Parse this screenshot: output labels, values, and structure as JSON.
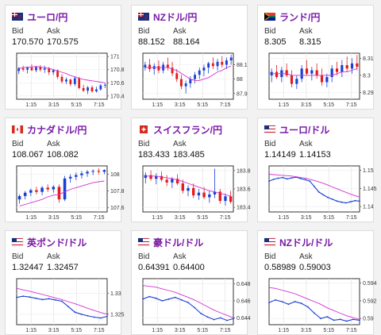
{
  "labels": {
    "bid": "Bid",
    "ask": "Ask"
  },
  "colors": {
    "title": "#7a1aa8",
    "up": "#1a3fd6",
    "down": "#e41b1b",
    "ma": "#d232d2",
    "line": "#1a3fd6"
  },
  "cards": [
    {
      "title": "ユーロ/円",
      "flag": "eu-flag",
      "bid": "170.570",
      "ask": "170.575",
      "chart_data": {
        "type": "candlestick",
        "x_ticks": [
          "1:15",
          "3:15",
          "5:15",
          "7:15"
        ],
        "y_ticks": [
          "171",
          "170.8",
          "170.6",
          "170.4"
        ],
        "ylim": [
          170.35,
          171.05
        ],
        "ohlc": [
          [
            170.78,
            170.84,
            170.73,
            170.82
          ],
          [
            170.82,
            170.86,
            170.77,
            170.8
          ],
          [
            170.8,
            170.84,
            170.74,
            170.83
          ],
          [
            170.83,
            170.88,
            170.78,
            170.79
          ],
          [
            170.79,
            170.85,
            170.76,
            170.84
          ],
          [
            170.84,
            170.87,
            170.77,
            170.8
          ],
          [
            170.8,
            170.86,
            170.75,
            170.82
          ],
          [
            170.82,
            170.84,
            170.72,
            170.76
          ],
          [
            170.76,
            170.81,
            170.72,
            170.79
          ],
          [
            170.79,
            170.8,
            170.66,
            170.69
          ],
          [
            170.69,
            170.73,
            170.59,
            170.62
          ],
          [
            170.62,
            170.68,
            170.58,
            170.65
          ],
          [
            170.65,
            170.66,
            170.55,
            170.58
          ],
          [
            170.58,
            170.7,
            170.55,
            170.67
          ],
          [
            170.67,
            170.69,
            170.5,
            170.52
          ],
          [
            170.52,
            170.57,
            170.46,
            170.48
          ],
          [
            170.48,
            170.55,
            170.43,
            170.53
          ],
          [
            170.53,
            170.56,
            170.45,
            170.47
          ],
          [
            170.47,
            170.54,
            170.45,
            170.5
          ],
          [
            170.5,
            170.58,
            170.48,
            170.56
          ],
          [
            170.56,
            170.6,
            170.52,
            170.57
          ]
        ],
        "ma": [
          170.82,
          170.83,
          170.84,
          170.84,
          170.85,
          170.84,
          170.83,
          170.82,
          170.8,
          170.78,
          170.76,
          170.74,
          170.71,
          170.69,
          170.67,
          170.65,
          170.64,
          170.63,
          170.62,
          170.61,
          170.6
        ]
      }
    },
    {
      "title": "NZドル/円",
      "flag": "nz-flag",
      "bid": "88.152",
      "ask": "88.164",
      "chart_data": {
        "type": "candlestick",
        "x_ticks": [
          "1:15",
          "3:15",
          "5:15",
          "7:15"
        ],
        "y_ticks": [
          "88.1",
          "88",
          "87.9"
        ],
        "ylim": [
          87.86,
          88.18
        ],
        "ohlc": [
          [
            88.08,
            88.12,
            88.06,
            88.1
          ],
          [
            88.1,
            88.14,
            88.05,
            88.07
          ],
          [
            88.07,
            88.11,
            88.03,
            88.09
          ],
          [
            88.09,
            88.13,
            88.04,
            88.06
          ],
          [
            88.06,
            88.12,
            88.04,
            88.1
          ],
          [
            88.1,
            88.15,
            88.06,
            88.08
          ],
          [
            88.08,
            88.12,
            88.02,
            88.04
          ],
          [
            88.04,
            88.07,
            87.98,
            88.0
          ],
          [
            88.0,
            88.03,
            87.93,
            87.95
          ],
          [
            87.95,
            87.99,
            87.9,
            87.97
          ],
          [
            87.97,
            88.02,
            87.94,
            88.0
          ],
          [
            88.0,
            88.05,
            87.97,
            88.03
          ],
          [
            88.03,
            88.08,
            88.0,
            88.06
          ],
          [
            88.06,
            88.1,
            88.02,
            88.08
          ],
          [
            88.08,
            88.12,
            88.04,
            88.11
          ],
          [
            88.11,
            88.15,
            88.07,
            88.09
          ],
          [
            88.09,
            88.14,
            88.06,
            88.12
          ],
          [
            88.12,
            88.16,
            88.08,
            88.1
          ],
          [
            88.1,
            88.15,
            88.07,
            88.13
          ],
          [
            88.13,
            88.17,
            88.1,
            88.15
          ]
        ],
        "ma": [
          88.08,
          88.08,
          88.08,
          88.08,
          88.08,
          88.08,
          88.07,
          88.06,
          88.04,
          88.02,
          88.0,
          87.99,
          87.99,
          88.0,
          88.01,
          88.03,
          88.05,
          88.06,
          88.08,
          88.09
        ]
      }
    },
    {
      "title": "ランド/円",
      "flag": "za-flag",
      "bid": "8.305",
      "ask": "8.315",
      "chart_data": {
        "type": "candlestick",
        "x_ticks": [
          "1:15",
          "3:15",
          "5:15",
          "7:15"
        ],
        "y_ticks": [
          "8.31",
          "8.3",
          "8.29"
        ],
        "ylim": [
          8.286,
          8.313
        ],
        "ohlc": [
          [
            8.3,
            8.304,
            8.296,
            8.302
          ],
          [
            8.302,
            8.306,
            8.298,
            8.299
          ],
          [
            8.299,
            8.305,
            8.296,
            8.303
          ],
          [
            8.303,
            8.307,
            8.299,
            8.3
          ],
          [
            8.3,
            8.303,
            8.293,
            8.295
          ],
          [
            8.295,
            8.3,
            8.292,
            8.298
          ],
          [
            8.298,
            8.306,
            8.296,
            8.304
          ],
          [
            8.304,
            8.309,
            8.3,
            8.301
          ],
          [
            8.301,
            8.305,
            8.297,
            8.303
          ],
          [
            8.303,
            8.307,
            8.298,
            8.3
          ],
          [
            8.3,
            8.304,
            8.294,
            8.296
          ],
          [
            8.296,
            8.301,
            8.293,
            8.299
          ],
          [
            8.299,
            8.306,
            8.296,
            8.304
          ],
          [
            8.304,
            8.308,
            8.3,
            8.302
          ],
          [
            8.302,
            8.309,
            8.299,
            8.306
          ],
          [
            8.306,
            8.311,
            8.302,
            8.304
          ],
          [
            8.304,
            8.31,
            8.301,
            8.307
          ],
          [
            8.307,
            8.312,
            8.303,
            8.305
          ]
        ],
        "ma": [
          8.301,
          8.301,
          8.301,
          8.301,
          8.3,
          8.3,
          8.3,
          8.3,
          8.3,
          8.3,
          8.3,
          8.3,
          8.3,
          8.301,
          8.302,
          8.302,
          8.303,
          8.304
        ]
      }
    },
    {
      "title": "カナダドル/円",
      "flag": "ca-flag",
      "bid": "108.067",
      "ask": "108.082",
      "chart_data": {
        "type": "candlestick",
        "x_ticks": [
          "1:15",
          "3:15",
          "5:15",
          "7:15"
        ],
        "y_ticks": [
          "108",
          "107.8",
          "107.6"
        ],
        "ylim": [
          107.55,
          108.1
        ],
        "ohlc": [
          [
            107.7,
            107.76,
            107.65,
            107.74
          ],
          [
            107.74,
            107.8,
            107.7,
            107.78
          ],
          [
            107.78,
            107.83,
            107.74,
            107.81
          ],
          [
            107.81,
            107.85,
            107.76,
            107.79
          ],
          [
            107.79,
            107.86,
            107.75,
            107.84
          ],
          [
            107.84,
            107.88,
            107.79,
            107.82
          ],
          [
            107.82,
            107.87,
            107.78,
            107.85
          ],
          [
            107.85,
            107.88,
            107.66,
            107.7
          ],
          [
            107.7,
            107.98,
            107.68,
            107.95
          ],
          [
            107.95,
            108.0,
            107.9,
            107.97
          ],
          [
            107.97,
            108.02,
            107.93,
            107.99
          ],
          [
            107.99,
            108.04,
            107.95,
            108.01
          ],
          [
            108.01,
            108.05,
            107.97,
            108.03
          ],
          [
            108.03,
            108.06,
            107.99,
            108.04
          ],
          [
            108.04,
            108.07,
            108.0,
            108.03
          ],
          [
            108.03,
            108.06,
            108.0,
            108.05
          ]
        ],
        "ma": [
          107.62,
          107.64,
          107.66,
          107.68,
          107.7,
          107.73,
          107.75,
          107.76,
          107.79,
          107.82,
          107.84,
          107.86,
          107.88,
          107.9,
          107.91,
          107.92
        ]
      }
    },
    {
      "title": "スイスフラン/円",
      "flag": "ch-flag",
      "bid": "183.433",
      "ask": "183.485",
      "chart_data": {
        "type": "candlestick",
        "x_ticks": [
          "1:15",
          "3:15",
          "5:15",
          "7:15"
        ],
        "y_ticks": [
          "183.8",
          "183.6",
          "183.4"
        ],
        "ylim": [
          183.35,
          183.85
        ],
        "ohlc": [
          [
            183.72,
            183.78,
            183.66,
            183.75
          ],
          [
            183.75,
            183.8,
            183.69,
            183.71
          ],
          [
            183.71,
            183.77,
            183.65,
            183.74
          ],
          [
            183.74,
            183.79,
            183.68,
            183.7
          ],
          [
            183.7,
            183.75,
            183.63,
            183.67
          ],
          [
            183.67,
            183.73,
            183.61,
            183.71
          ],
          [
            183.71,
            183.76,
            183.64,
            183.66
          ],
          [
            183.66,
            183.7,
            183.55,
            183.58
          ],
          [
            183.58,
            183.64,
            183.52,
            183.61
          ],
          [
            183.61,
            183.66,
            183.5,
            183.53
          ],
          [
            183.53,
            183.6,
            183.48,
            183.56
          ],
          [
            183.56,
            183.62,
            183.49,
            183.51
          ],
          [
            183.51,
            183.58,
            183.45,
            183.54
          ],
          [
            183.54,
            183.82,
            183.5,
            183.57
          ],
          [
            183.57,
            183.6,
            183.44,
            183.47
          ],
          [
            183.47,
            183.55,
            183.42,
            183.52
          ],
          [
            183.52,
            183.58,
            183.44,
            183.46
          ]
        ],
        "ma": [
          183.74,
          183.74,
          183.74,
          183.73,
          183.72,
          183.71,
          183.7,
          183.68,
          183.66,
          183.64,
          183.62,
          183.6,
          183.58,
          183.57,
          183.55,
          183.54,
          183.52
        ]
      }
    },
    {
      "title": "ユーロ/ドル",
      "flag": "us-flag",
      "bid": "1.14149",
      "ask": "1.14153",
      "chart_data": {
        "type": "line",
        "x_ticks": [
          "1:15",
          "3:15",
          "5:15",
          "7:15"
        ],
        "y_ticks": [
          "1.15",
          "1.145",
          "1.14"
        ],
        "ylim": [
          1.1385,
          1.1512
        ],
        "line": [
          1.147,
          1.1475,
          1.1478,
          1.148,
          1.1476,
          1.1479,
          1.1481,
          1.1477,
          1.1474,
          1.147,
          1.1455,
          1.144,
          1.1432,
          1.1425,
          1.142,
          1.1415,
          1.1412,
          1.141,
          1.1413,
          1.1416,
          1.1415
        ],
        "ma": [
          1.1489,
          1.1488,
          1.1487,
          1.1486,
          1.1485,
          1.1484,
          1.1482,
          1.148,
          1.1478,
          1.1475,
          1.1472,
          1.1468,
          1.1464,
          1.1459,
          1.1454,
          1.1449,
          1.1444,
          1.1439,
          1.1434,
          1.143,
          1.1426
        ]
      }
    },
    {
      "title": "英ポンド/ドル",
      "flag": "us-flag",
      "bid": "1.32447",
      "ask": "1.32457",
      "chart_data": {
        "type": "line",
        "x_ticks": [
          "1:15",
          "3:15",
          "5:15",
          "7:15"
        ],
        "y_ticks": [
          "1.33",
          "1.325"
        ],
        "ylim": [
          1.3225,
          1.3335
        ],
        "line": [
          1.329,
          1.3293,
          1.3291,
          1.3288,
          1.3285,
          1.3287,
          1.3284,
          1.3281,
          1.3268,
          1.3255,
          1.325,
          1.3246,
          1.3243,
          1.3241,
          1.3245
        ],
        "ma": [
          1.3312,
          1.3308,
          1.3305,
          1.3301,
          1.3297,
          1.3293,
          1.3289,
          1.3285,
          1.328,
          1.3275,
          1.327,
          1.3264,
          1.3259,
          1.3254,
          1.325
        ]
      }
    },
    {
      "title": "豪ドル/ドル",
      "flag": "us-flag",
      "bid": "0.64391",
      "ask": "0.64400",
      "chart_data": {
        "type": "line",
        "x_ticks": [
          "1:15",
          "3:15",
          "5:15",
          "7:15"
        ],
        "y_ticks": [
          "0.648",
          "0.646",
          "0.644"
        ],
        "ylim": [
          0.6432,
          0.6486
        ],
        "line": [
          0.6462,
          0.6465,
          0.6463,
          0.646,
          0.6462,
          0.6464,
          0.6461,
          0.6458,
          0.6452,
          0.6445,
          0.6441,
          0.6438,
          0.644,
          0.6437,
          0.6439
        ],
        "ma": [
          0.6478,
          0.6477,
          0.6476,
          0.6474,
          0.6472,
          0.647,
          0.6467,
          0.6464,
          0.6461,
          0.6457,
          0.6453,
          0.6449,
          0.6446,
          0.6443,
          0.644
        ]
      }
    },
    {
      "title": "NZドル/ドル",
      "flag": "us-flag",
      "bid": "0.58989",
      "ask": "0.59003",
      "chart_data": {
        "type": "line",
        "x_ticks": [
          "1:15",
          "3:15",
          "5:15",
          "7:15"
        ],
        "y_ticks": [
          "0.594",
          "0.592",
          "0.59"
        ],
        "ylim": [
          0.5893,
          0.5945
        ],
        "line": [
          0.5918,
          0.5921,
          0.5919,
          0.5916,
          0.5919,
          0.5917,
          0.5913,
          0.5906,
          0.59,
          0.5902,
          0.5898,
          0.5899,
          0.5897,
          0.5899,
          0.5898
        ],
        "ma": [
          0.5935,
          0.5934,
          0.5932,
          0.593,
          0.5928,
          0.5925,
          0.5922,
          0.5919,
          0.5916,
          0.5912,
          0.5909,
          0.5906,
          0.5903,
          0.5901,
          0.5899
        ]
      }
    }
  ]
}
